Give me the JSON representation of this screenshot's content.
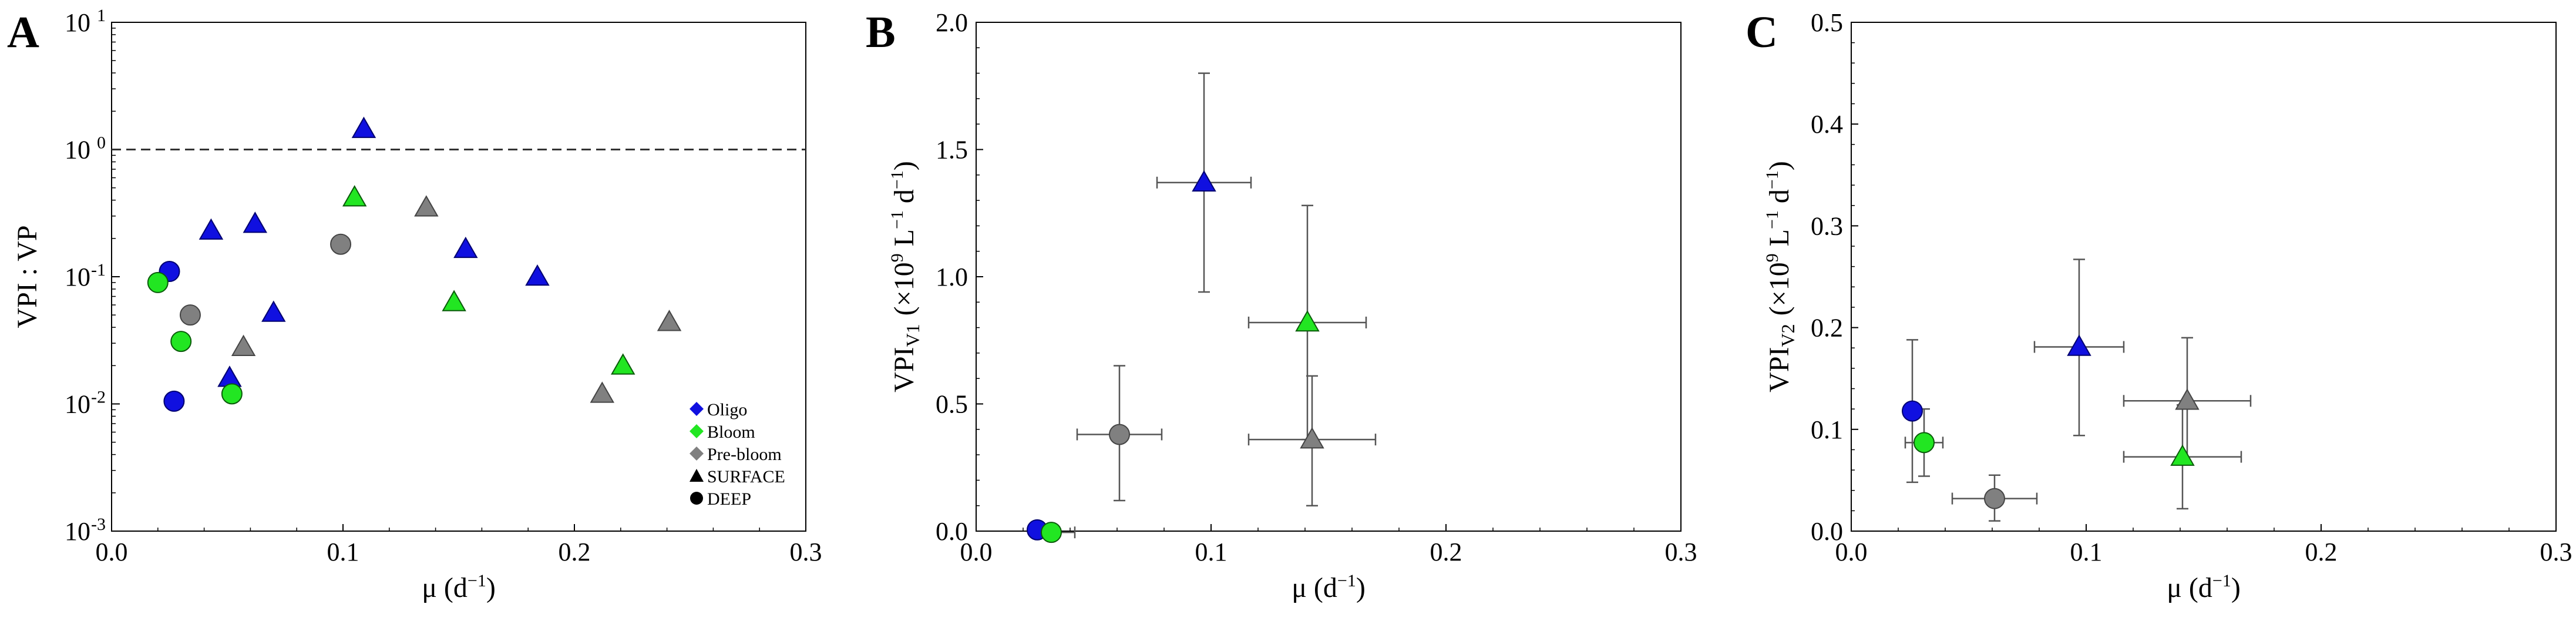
{
  "chart_data": [
    {
      "panel": "A",
      "type": "scatter",
      "yscale": "log",
      "xlim": [
        0.0,
        0.3
      ],
      "ylim": [
        0.001,
        10
      ],
      "xticks": [
        "0.0",
        "0.1",
        "0.2",
        "0.3"
      ],
      "xlabel": "μ (d",
      "xlabel_sup": "−1",
      "xlabel_close": ")",
      "ylabel": "VPI : VP",
      "yticks": [
        {
          "base": "10",
          "exp": "1",
          "value": 10
        },
        {
          "base": "10",
          "exp": "0",
          "value": 1
        },
        {
          "base": "10",
          "exp": "-1",
          "value": 0.1
        },
        {
          "base": "10",
          "exp": "-2",
          "value": 0.01
        },
        {
          "base": "10",
          "exp": "-3",
          "value": 0.001
        }
      ],
      "reference_line": {
        "y": 1,
        "style": "dashed"
      },
      "legend": {
        "position": "bottom-right",
        "entries": [
          {
            "label": "Oligo",
            "marker": "diamond",
            "color": "#1010e0"
          },
          {
            "label": "Bloom",
            "marker": "diamond",
            "color": "#22e622"
          },
          {
            "label": "Pre-bloom",
            "marker": "diamond",
            "color": "#808080"
          },
          {
            "label": "SURFACE",
            "marker": "triangle",
            "color": "#000000"
          },
          {
            "label": "DEEP",
            "marker": "circle",
            "color": "#000000"
          }
        ]
      },
      "series": [
        {
          "group": "Oligo",
          "depth": "SURFACE",
          "color": "#1010e0",
          "marker": "triangle",
          "points": [
            [
              0.109,
              1.45
            ],
            [
              0.043,
              0.23
            ],
            [
              0.062,
              0.26
            ],
            [
              0.153,
              0.165
            ],
            [
              0.184,
              0.1
            ],
            [
              0.07,
              0.052
            ],
            [
              0.051,
              0.016
            ]
          ]
        },
        {
          "group": "Oligo",
          "depth": "DEEP",
          "color": "#1010e0",
          "marker": "circle",
          "points": [
            [
              0.025,
              0.11
            ],
            [
              0.027,
              0.0105
            ]
          ]
        },
        {
          "group": "Bloom",
          "depth": "SURFACE",
          "color": "#22e622",
          "marker": "triangle",
          "points": [
            [
              0.105,
              0.42
            ],
            [
              0.148,
              0.063
            ],
            [
              0.221,
              0.02
            ]
          ]
        },
        {
          "group": "Bloom",
          "depth": "DEEP",
          "color": "#22e622",
          "marker": "circle",
          "points": [
            [
              0.02,
              0.09
            ],
            [
              0.03,
              0.031
            ],
            [
              0.052,
              0.012
            ]
          ]
        },
        {
          "group": "Pre-bloom",
          "depth": "SURFACE",
          "color": "#808080",
          "marker": "triangle",
          "points": [
            [
              0.136,
              0.35
            ],
            [
              0.241,
              0.044
            ],
            [
              0.057,
              0.028
            ],
            [
              0.212,
              0.012
            ]
          ]
        },
        {
          "group": "Pre-bloom",
          "depth": "DEEP",
          "color": "#808080",
          "marker": "circle",
          "points": [
            [
              0.099,
              0.18
            ],
            [
              0.034,
              0.05
            ]
          ]
        }
      ]
    },
    {
      "panel": "B",
      "type": "scatter",
      "xlim": [
        0.0,
        0.3
      ],
      "ylim": [
        0.0,
        2.0
      ],
      "xticks": [
        "0.0",
        "0.1",
        "0.2",
        "0.3"
      ],
      "yticks": [
        "0.0",
        "0.5",
        "1.0",
        "1.5",
        "2.0"
      ],
      "xlabel": "μ (d",
      "xlabel_sup": "−1",
      "xlabel_close": ")",
      "ylabel": "VPI",
      "ylabel_sub": "V1",
      "ylabel_units": "(×10",
      "ylabel_units_sup1": "9",
      "ylabel_units_mid": " L",
      "ylabel_units_sup2": "−1",
      "ylabel_units_end": " d",
      "ylabel_units_sup3": "−1",
      "ylabel_units_close": ")",
      "series": [
        {
          "group": "Oligo",
          "depth": "SURFACE",
          "color": "#1010e0",
          "marker": "triangle",
          "x": 0.097,
          "y": 1.37,
          "xerr": [
            0.077,
            0.117
          ],
          "yerr": [
            0.94,
            1.8
          ]
        },
        {
          "group": "Bloom",
          "depth": "SURFACE",
          "color": "#22e622",
          "marker": "triangle",
          "x": 0.141,
          "y": 0.82,
          "xerr": [
            0.116,
            0.166
          ],
          "yerr": [
            0.36,
            1.28
          ]
        },
        {
          "group": "Pre-bloom",
          "depth": "SURFACE",
          "color": "#808080",
          "marker": "triangle",
          "x": 0.143,
          "y": 0.36,
          "xerr": [
            0.116,
            0.17
          ],
          "yerr": [
            0.1,
            0.61
          ]
        },
        {
          "group": "Pre-bloom",
          "depth": "DEEP",
          "color": "#808080",
          "marker": "circle",
          "x": 0.061,
          "y": 0.38,
          "xerr": [
            0.043,
            0.079
          ],
          "yerr": [
            0.12,
            0.65
          ]
        },
        {
          "group": "Oligo",
          "depth": "DEEP",
          "color": "#1010e0",
          "marker": "circle",
          "x": 0.026,
          "y": 0.005,
          "xerr": null,
          "yerr": null
        },
        {
          "group": "Bloom",
          "depth": "DEEP",
          "color": "#22e622",
          "marker": "circle",
          "x": 0.032,
          "y": -0.005,
          "xerr": [
            0.026,
            0.042
          ],
          "yerr": null
        }
      ]
    },
    {
      "panel": "C",
      "type": "scatter",
      "xlim": [
        0.0,
        0.3
      ],
      "ylim": [
        0.0,
        0.5
      ],
      "xticks": [
        "0.0",
        "0.1",
        "0.2",
        "0.3"
      ],
      "yticks": [
        "0.0",
        "0.1",
        "0.2",
        "0.3",
        "0.4",
        "0.5"
      ],
      "xlabel": "μ (d",
      "xlabel_sup": "−1",
      "xlabel_close": ")",
      "ylabel": "VPI",
      "ylabel_sub": "V2",
      "ylabel_units": "(×10",
      "ylabel_units_sup1": "9",
      "ylabel_units_mid": " L",
      "ylabel_units_sup2": "−1",
      "ylabel_units_end": " d",
      "ylabel_units_sup3": "−1",
      "ylabel_units_close": ")",
      "series": [
        {
          "group": "Oligo",
          "depth": "SURFACE",
          "color": "#1010e0",
          "marker": "triangle",
          "x": 0.097,
          "y": 0.181,
          "xerr": [
            0.078,
            0.116
          ],
          "yerr": [
            0.094,
            0.267
          ]
        },
        {
          "group": "Pre-bloom",
          "depth": "SURFACE",
          "color": "#808080",
          "marker": "triangle",
          "x": 0.143,
          "y": 0.128,
          "xerr": [
            0.116,
            0.17
          ],
          "yerr": [
            0.066,
            0.19
          ]
        },
        {
          "group": "Bloom",
          "depth": "SURFACE",
          "color": "#22e622",
          "marker": "triangle",
          "x": 0.141,
          "y": 0.073,
          "xerr": [
            0.116,
            0.166
          ],
          "yerr": [
            0.022,
            0.124
          ]
        },
        {
          "group": "Oligo",
          "depth": "DEEP",
          "color": "#1010e0",
          "marker": "circle",
          "x": 0.026,
          "y": 0.118,
          "xerr": null,
          "yerr": [
            0.048,
            0.188
          ]
        },
        {
          "group": "Bloom",
          "depth": "DEEP",
          "color": "#22e622",
          "marker": "circle",
          "x": 0.031,
          "y": 0.087,
          "xerr": [
            0.023,
            0.039
          ],
          "yerr": [
            0.054,
            0.12
          ]
        },
        {
          "group": "Pre-bloom",
          "depth": "DEEP",
          "color": "#808080",
          "marker": "circle",
          "x": 0.061,
          "y": 0.032,
          "xerr": [
            0.043,
            0.079
          ],
          "yerr": [
            0.01,
            0.055
          ]
        }
      ]
    }
  ]
}
